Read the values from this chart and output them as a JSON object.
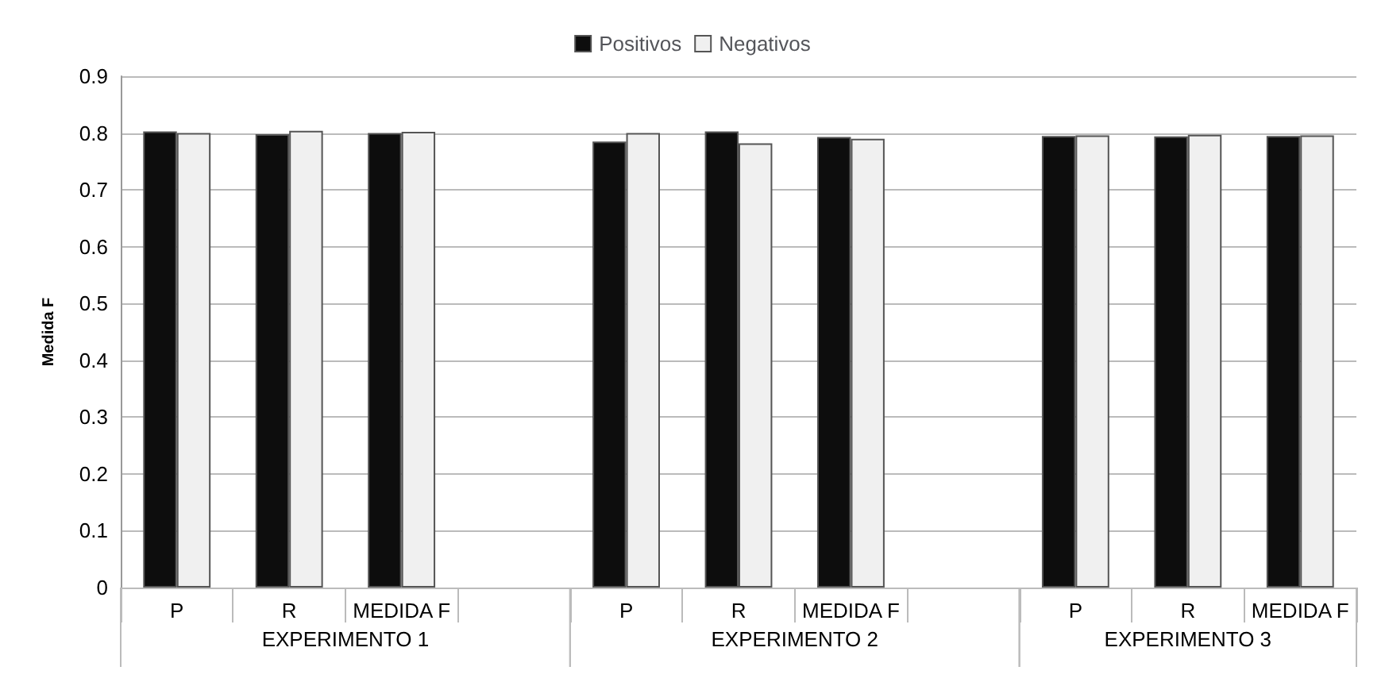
{
  "chart_data": {
    "type": "bar",
    "ylabel": "Medida F",
    "categories": [
      "P",
      "R",
      "MEDIDA F",
      null,
      "P",
      "R",
      "MEDIDA F",
      null,
      "P",
      "R",
      "MEDIDA F"
    ],
    "series": [
      {
        "name": "Positivos",
        "color": "#0d0d0d",
        "values": [
          0.803,
          0.798,
          0.8,
          null,
          0.785,
          0.803,
          0.793,
          null,
          0.795,
          0.794,
          0.795
        ]
      },
      {
        "name": "Negativos",
        "color": "#f0f0f0",
        "values": [
          0.8,
          0.804,
          0.802,
          null,
          0.8,
          0.782,
          0.79,
          null,
          0.796,
          0.797,
          0.796
        ]
      }
    ],
    "ylim": [
      0,
      0.9
    ],
    "yticks": [
      0,
      0.1,
      0.2,
      0.3,
      0.4,
      0.5,
      0.6,
      0.7,
      0.8,
      0.9
    ],
    "grid": "y",
    "legend": "top",
    "annotations": [
      "EXPERIMENTO 1",
      "EXPERIMENTO 2",
      "EXPERIMENTO 3"
    ]
  }
}
